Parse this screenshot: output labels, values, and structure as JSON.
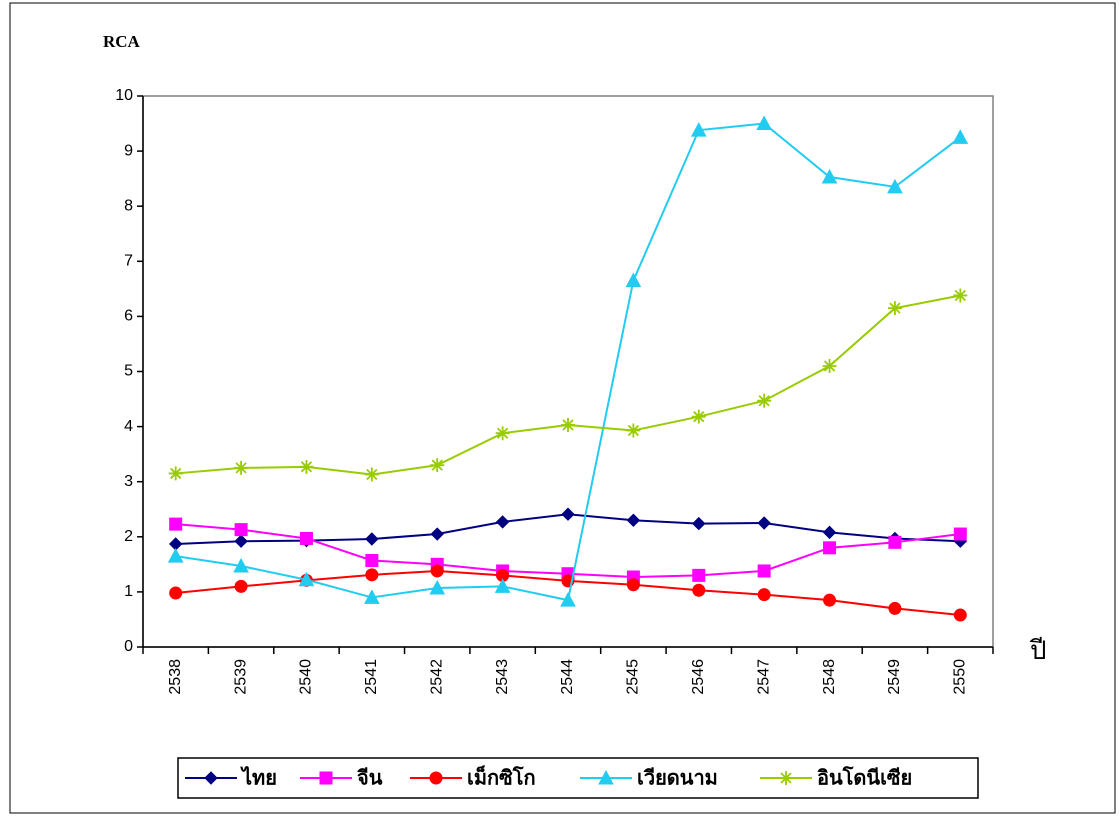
{
  "chart_data": {
    "type": "line",
    "y_label": "RCA",
    "x_label": "ปี",
    "categories": [
      "2538",
      "2539",
      "2540",
      "2541",
      "2542",
      "2543",
      "2544",
      "2545",
      "2546",
      "2547",
      "2548",
      "2549",
      "2550"
    ],
    "series": [
      {
        "name": "ไทย",
        "color": "#000080",
        "marker": "diamond",
        "values": [
          1.87,
          1.92,
          1.93,
          1.96,
          2.05,
          2.27,
          2.41,
          2.3,
          2.24,
          2.25,
          2.08,
          1.97,
          1.92
        ]
      },
      {
        "name": "จีน",
        "color": "#ff00ff",
        "marker": "square",
        "values": [
          2.23,
          2.13,
          1.97,
          1.57,
          1.5,
          1.38,
          1.33,
          1.27,
          1.3,
          1.38,
          1.8,
          1.9,
          2.05
        ]
      },
      {
        "name": "เม็กซิโก",
        "color": "#ff0000",
        "marker": "circle",
        "values": [
          0.98,
          1.1,
          1.21,
          1.31,
          1.38,
          1.3,
          1.2,
          1.13,
          1.03,
          0.95,
          0.85,
          0.7,
          0.58
        ]
      },
      {
        "name": "เวียดนาม",
        "color": "#22ccf0",
        "marker": "triangle",
        "values": [
          1.65,
          1.47,
          1.22,
          0.9,
          1.07,
          1.1,
          0.85,
          6.65,
          9.38,
          9.5,
          8.53,
          8.35,
          9.25
        ]
      },
      {
        "name": "อินโดนีเซีย",
        "color": "#99cc00",
        "marker": "star",
        "values": [
          3.15,
          3.25,
          3.27,
          3.13,
          3.3,
          3.88,
          4.03,
          3.93,
          4.18,
          4.47,
          5.1,
          6.15,
          6.38
        ]
      }
    ],
    "ylim": [
      0,
      10
    ],
    "yticks": [
      0,
      1,
      2,
      3,
      4,
      5,
      6,
      7,
      8,
      9,
      10
    ],
    "grid": false,
    "legend": "bottom"
  }
}
